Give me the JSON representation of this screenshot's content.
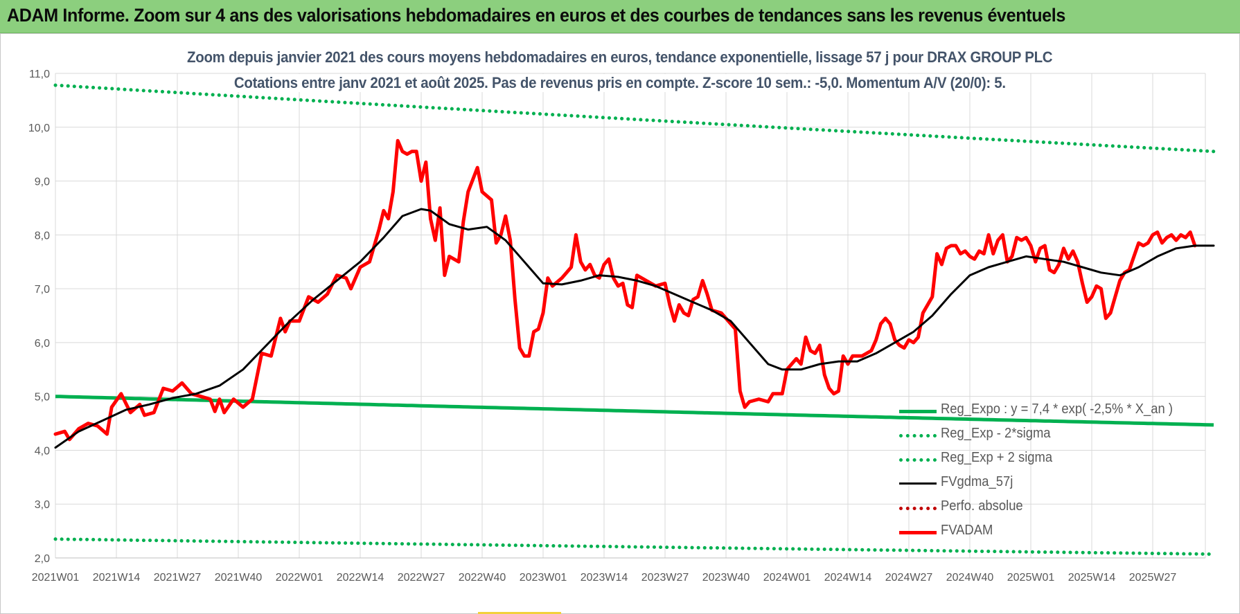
{
  "banner": {
    "title": "ADAM Informe. Zoom sur 4 ans des valorisations hebdomadaires en euros et des courbes de tendances sans les revenus éventuels"
  },
  "colors": {
    "banner_bg": "#8ccf7e",
    "series_red": "#ff0000",
    "series_black": "#000000",
    "series_green": "#00b050",
    "series_red_dotted": "#c00000",
    "subtitle": "#44546a",
    "axis_text": "#595959",
    "grid": "#d9d9d9"
  },
  "chart_data": {
    "type": "line",
    "title_line1": "Zoom depuis janvier 2021 des cours moyens hebdomadaires en euros, tendance exponentielle, lissage 57 j pour DRAX GROUP PLC",
    "title_line2": "Cotations entre janv 2021 et août 2025.  Pas de revenus pris en compte. Z-score 10 sem.: -5,0. Momentum A/V (20/0): 5.",
    "xlabel": "",
    "ylabel": "",
    "ylim": [
      2.0,
      11.0
    ],
    "y_ticks": [
      "2,0",
      "3,0",
      "4,0",
      "5,0",
      "6,0",
      "7,0",
      "8,0",
      "9,0",
      "10,0",
      "11,0"
    ],
    "x_ticks": [
      "2021W01",
      "2021W14",
      "2021W27",
      "2021W40",
      "2022W01",
      "2022W14",
      "2022W27",
      "2022W40",
      "2023W01",
      "2023W14",
      "2023W27",
      "2023W40",
      "2024W01",
      "2024W14",
      "2024W27",
      "2024W40",
      "2025W01",
      "2025W14",
      "2025W27"
    ],
    "grid": true,
    "legend_position": "bottom-right",
    "series": [
      {
        "name": "Reg_Expo : y = 7,4 * exp( -2,5% *  X_an )",
        "style": "solid",
        "color": "#00b050",
        "points": [
          [
            0,
            5.0
          ],
          [
            247,
            4.47
          ]
        ]
      },
      {
        "name": "Reg_Exp - 2*sigma",
        "style": "dotted",
        "color": "#00b050",
        "points": [
          [
            0,
            2.35
          ],
          [
            247,
            2.07
          ]
        ]
      },
      {
        "name": "Reg_Exp + 2 sigma",
        "style": "dotted",
        "color": "#00b050",
        "points": [
          [
            0,
            10.78
          ],
          [
            247,
            9.55
          ]
        ]
      },
      {
        "name": "FVgdma_57j",
        "style": "solid",
        "color": "#000000",
        "points": [
          [
            0,
            4.05
          ],
          [
            5,
            4.35
          ],
          [
            10,
            4.55
          ],
          [
            15,
            4.75
          ],
          [
            20,
            4.85
          ],
          [
            25,
            4.97
          ],
          [
            30,
            5.05
          ],
          [
            35,
            5.2
          ],
          [
            40,
            5.5
          ],
          [
            45,
            5.95
          ],
          [
            50,
            6.4
          ],
          [
            55,
            6.8
          ],
          [
            60,
            7.15
          ],
          [
            65,
            7.5
          ],
          [
            70,
            7.95
          ],
          [
            74,
            8.35
          ],
          [
            78,
            8.48
          ],
          [
            80,
            8.45
          ],
          [
            84,
            8.2
          ],
          [
            88,
            8.1
          ],
          [
            92,
            8.15
          ],
          [
            96,
            7.9
          ],
          [
            100,
            7.5
          ],
          [
            104,
            7.1
          ],
          [
            108,
            7.08
          ],
          [
            112,
            7.15
          ],
          [
            116,
            7.25
          ],
          [
            120,
            7.22
          ],
          [
            124,
            7.15
          ],
          [
            128,
            7.05
          ],
          [
            132,
            6.9
          ],
          [
            136,
            6.75
          ],
          [
            140,
            6.6
          ],
          [
            144,
            6.4
          ],
          [
            148,
            6.0
          ],
          [
            152,
            5.6
          ],
          [
            155,
            5.5
          ],
          [
            159,
            5.5
          ],
          [
            163,
            5.6
          ],
          [
            167,
            5.65
          ],
          [
            171,
            5.65
          ],
          [
            175,
            5.8
          ],
          [
            179,
            6.0
          ],
          [
            183,
            6.2
          ],
          [
            187,
            6.5
          ],
          [
            191,
            6.9
          ],
          [
            195,
            7.25
          ],
          [
            199,
            7.4
          ],
          [
            203,
            7.5
          ],
          [
            207,
            7.6
          ],
          [
            211,
            7.55
          ],
          [
            215,
            7.5
          ],
          [
            219,
            7.4
          ],
          [
            223,
            7.3
          ],
          [
            227,
            7.25
          ],
          [
            231,
            7.4
          ],
          [
            235,
            7.6
          ],
          [
            239,
            7.75
          ],
          [
            243,
            7.8
          ],
          [
            247,
            7.8
          ]
        ]
      },
      {
        "name": "Perfo. absolue",
        "style": "dotted",
        "color": "#c00000",
        "points": []
      },
      {
        "name": "FVADAM",
        "style": "solid",
        "color": "#ff0000",
        "points": [
          [
            0,
            4.3
          ],
          [
            2,
            4.35
          ],
          [
            3,
            4.2
          ],
          [
            5,
            4.4
          ],
          [
            7,
            4.5
          ],
          [
            9,
            4.45
          ],
          [
            11,
            4.3
          ],
          [
            12,
            4.8
          ],
          [
            14,
            5.05
          ],
          [
            16,
            4.7
          ],
          [
            18,
            4.85
          ],
          [
            19,
            4.65
          ],
          [
            21,
            4.7
          ],
          [
            23,
            5.15
          ],
          [
            25,
            5.1
          ],
          [
            27,
            5.25
          ],
          [
            29,
            5.05
          ],
          [
            31,
            5.0
          ],
          [
            33,
            4.95
          ],
          [
            34,
            4.72
          ],
          [
            35,
            4.95
          ],
          [
            36,
            4.7
          ],
          [
            38,
            4.95
          ],
          [
            40,
            4.8
          ],
          [
            42,
            4.95
          ],
          [
            44,
            5.8
          ],
          [
            46,
            5.75
          ],
          [
            48,
            6.45
          ],
          [
            49,
            6.2
          ],
          [
            50,
            6.4
          ],
          [
            52,
            6.4
          ],
          [
            54,
            6.85
          ],
          [
            56,
            6.75
          ],
          [
            58,
            6.9
          ],
          [
            60,
            7.25
          ],
          [
            62,
            7.2
          ],
          [
            63,
            7.0
          ],
          [
            65,
            7.4
          ],
          [
            67,
            7.5
          ],
          [
            69,
            8.1
          ],
          [
            70,
            8.45
          ],
          [
            71,
            8.3
          ],
          [
            72,
            8.8
          ],
          [
            73,
            9.75
          ],
          [
            74,
            9.55
          ],
          [
            75,
            9.5
          ],
          [
            76,
            9.55
          ],
          [
            77,
            9.55
          ],
          [
            78,
            9.0
          ],
          [
            79,
            9.35
          ],
          [
            80,
            8.3
          ],
          [
            81,
            7.9
          ],
          [
            82,
            8.5
          ],
          [
            83,
            7.25
          ],
          [
            84,
            7.6
          ],
          [
            86,
            7.5
          ],
          [
            87,
            8.25
          ],
          [
            88,
            8.8
          ],
          [
            90,
            9.25
          ],
          [
            91,
            8.8
          ],
          [
            93,
            8.65
          ],
          [
            94,
            7.85
          ],
          [
            95,
            8.0
          ],
          [
            96,
            8.35
          ],
          [
            97,
            7.9
          ],
          [
            98,
            6.8
          ],
          [
            99,
            5.9
          ],
          [
            100,
            5.75
          ],
          [
            101,
            5.75
          ],
          [
            102,
            6.2
          ],
          [
            103,
            6.25
          ],
          [
            104,
            6.55
          ],
          [
            105,
            7.2
          ],
          [
            106,
            7.05
          ],
          [
            108,
            7.2
          ],
          [
            110,
            7.4
          ],
          [
            111,
            8.0
          ],
          [
            112,
            7.5
          ],
          [
            113,
            7.35
          ],
          [
            114,
            7.45
          ],
          [
            115,
            7.25
          ],
          [
            116,
            7.2
          ],
          [
            117,
            7.45
          ],
          [
            118,
            7.55
          ],
          [
            119,
            7.2
          ],
          [
            120,
            7.05
          ],
          [
            121,
            7.1
          ],
          [
            122,
            6.7
          ],
          [
            123,
            6.65
          ],
          [
            124,
            7.25
          ],
          [
            126,
            7.15
          ],
          [
            128,
            7.05
          ],
          [
            130,
            7.1
          ],
          [
            131,
            6.7
          ],
          [
            132,
            6.4
          ],
          [
            133,
            6.7
          ],
          [
            134,
            6.55
          ],
          [
            135,
            6.5
          ],
          [
            136,
            6.8
          ],
          [
            137,
            6.85
          ],
          [
            138,
            7.15
          ],
          [
            139,
            6.9
          ],
          [
            140,
            6.6
          ],
          [
            142,
            6.55
          ],
          [
            144,
            6.35
          ],
          [
            145,
            6.25
          ],
          [
            146,
            5.1
          ],
          [
            147,
            4.8
          ],
          [
            148,
            4.9
          ],
          [
            150,
            4.95
          ],
          [
            152,
            4.9
          ],
          [
            153,
            5.05
          ],
          [
            155,
            5.05
          ],
          [
            156,
            5.5
          ],
          [
            158,
            5.7
          ],
          [
            159,
            5.6
          ],
          [
            160,
            6.1
          ],
          [
            161,
            5.85
          ],
          [
            162,
            5.8
          ],
          [
            163,
            5.95
          ],
          [
            164,
            5.4
          ],
          [
            165,
            5.15
          ],
          [
            166,
            5.05
          ],
          [
            167,
            5.1
          ],
          [
            168,
            5.75
          ],
          [
            169,
            5.6
          ],
          [
            170,
            5.75
          ],
          [
            172,
            5.75
          ],
          [
            173,
            5.8
          ],
          [
            174,
            5.85
          ],
          [
            175,
            6.05
          ],
          [
            176,
            6.35
          ],
          [
            177,
            6.45
          ],
          [
            178,
            6.35
          ],
          [
            179,
            6.05
          ],
          [
            180,
            5.95
          ],
          [
            181,
            5.9
          ],
          [
            182,
            6.05
          ],
          [
            183,
            6.0
          ],
          [
            184,
            6.1
          ],
          [
            185,
            6.55
          ],
          [
            186,
            6.7
          ],
          [
            187,
            6.85
          ],
          [
            188,
            7.65
          ],
          [
            189,
            7.45
          ],
          [
            190,
            7.75
          ],
          [
            191,
            7.8
          ],
          [
            192,
            7.8
          ],
          [
            193,
            7.65
          ],
          [
            194,
            7.7
          ],
          [
            195,
            7.6
          ],
          [
            196,
            7.55
          ],
          [
            197,
            7.7
          ],
          [
            198,
            7.65
          ],
          [
            199,
            8.0
          ],
          [
            200,
            7.65
          ],
          [
            201,
            7.9
          ],
          [
            202,
            8.0
          ],
          [
            203,
            7.5
          ],
          [
            204,
            7.6
          ],
          [
            205,
            7.95
          ],
          [
            206,
            7.9
          ],
          [
            207,
            7.95
          ],
          [
            208,
            7.8
          ],
          [
            209,
            7.5
          ],
          [
            210,
            7.75
          ],
          [
            211,
            7.8
          ],
          [
            212,
            7.35
          ],
          [
            213,
            7.3
          ],
          [
            214,
            7.45
          ],
          [
            215,
            7.75
          ],
          [
            216,
            7.55
          ],
          [
            217,
            7.7
          ],
          [
            218,
            7.5
          ],
          [
            219,
            7.1
          ],
          [
            220,
            6.75
          ],
          [
            221,
            6.85
          ],
          [
            222,
            7.05
          ],
          [
            223,
            7.0
          ],
          [
            224,
            6.45
          ],
          [
            225,
            6.55
          ],
          [
            226,
            6.85
          ],
          [
            227,
            7.15
          ],
          [
            228,
            7.3
          ],
          [
            229,
            7.35
          ],
          [
            230,
            7.6
          ],
          [
            231,
            7.85
          ],
          [
            232,
            7.8
          ],
          [
            233,
            7.85
          ],
          [
            234,
            8.0
          ],
          [
            235,
            8.05
          ],
          [
            236,
            7.85
          ],
          [
            237,
            7.95
          ],
          [
            238,
            8.0
          ],
          [
            239,
            7.9
          ],
          [
            240,
            8.0
          ],
          [
            241,
            7.95
          ],
          [
            242,
            8.05
          ],
          [
            243,
            7.8
          ]
        ]
      }
    ]
  }
}
